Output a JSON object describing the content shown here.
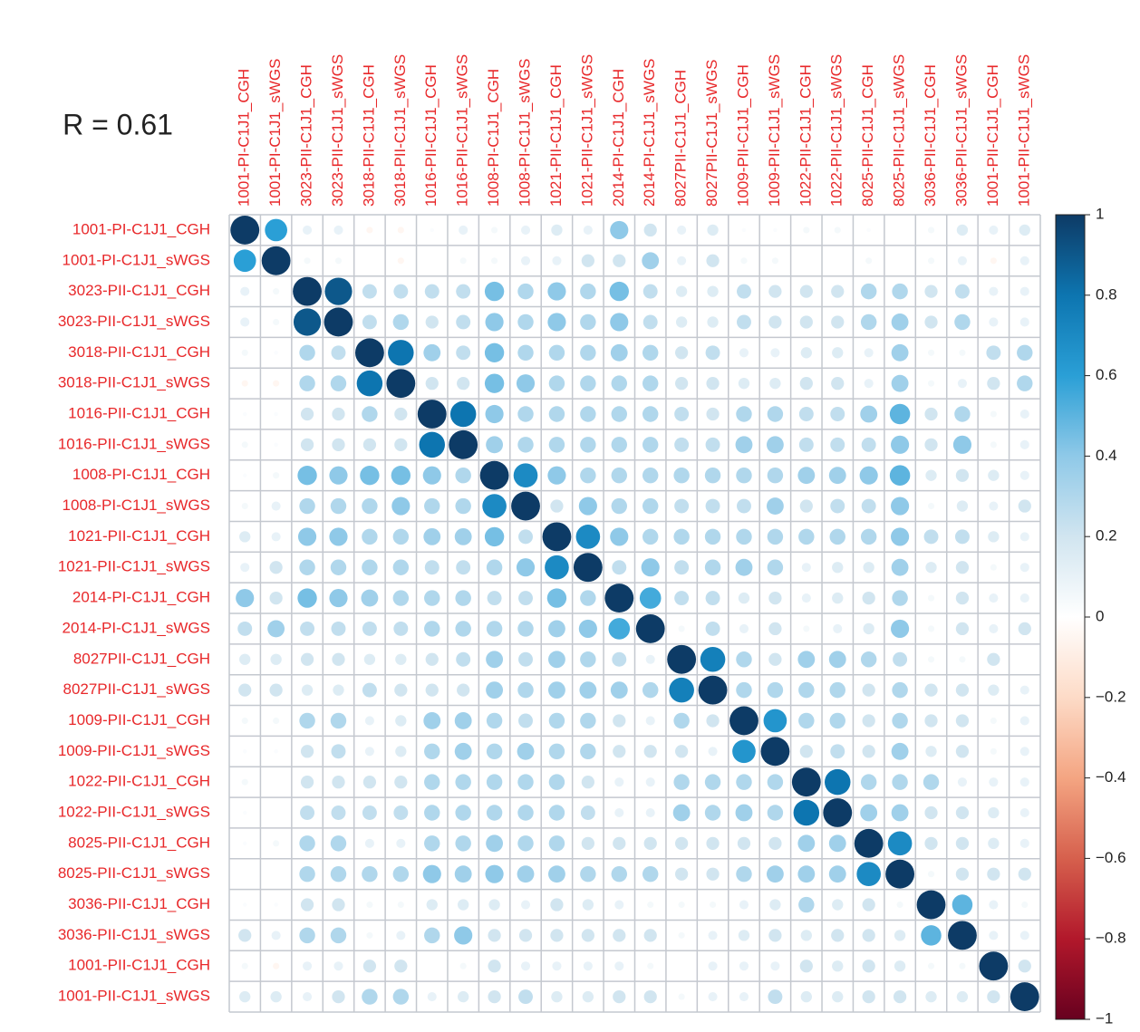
{
  "chart_data": {
    "type": "corrplot",
    "annotation": "R = 0.61",
    "row_labels": [
      "1001-PI-C1J1_CGH",
      "1001-PI-C1J1_sWGS",
      "3023-PII-C1J1_CGH",
      "3023-PII-C1J1_sWGS",
      "3018-PII-C1J1_CGH",
      "3018-PII-C1J1_sWGS",
      "1016-PII-C1J1_CGH",
      "1016-PII-C1J1_sWGS",
      "1008-PI-C1J1_CGH",
      "1008-PI-C1J1_sWGS",
      "1021-PII-C1J1_CGH",
      "1021-PII-C1J1_sWGS",
      "2014-PI-C1J1_CGH",
      "2014-PI-C1J1_sWGS",
      "8027PII-C1J1_CGH",
      "8027PII-C1J1_sWGS",
      "1009-PII-C1J1_CGH",
      "1009-PII-C1J1_sWGS",
      "1022-PII-C1J1_CGH",
      "1022-PII-C1J1_sWGS",
      "8025-PII-C1J1_CGH",
      "8025-PII-C1J1_sWGS",
      "3036-PII-C1J1_CGH",
      "3036-PII-C1J1_sWGS",
      "1001-PII-C1J1_CGH",
      "1001-PII-C1J1_sWGS"
    ],
    "col_labels": [
      "1001-PI-C1J1_CGH",
      "1001-PI-C1J1_sWGS",
      "3023-PII-C1J1_CGH",
      "3023-PII-C1J1_sWGS",
      "3018-PII-C1J1_CGH",
      "3018-PII-C1J1_sWGS",
      "1016-PII-C1J1_CGH",
      "1016-PII-C1J1_sWGS",
      "1008-PI-C1J1_CGH",
      "1008-PI-C1J1_sWGS",
      "1021-PII-C1J1_CGH",
      "1021-PII-C1J1_sWGS",
      "2014-PI-C1J1_CGH",
      "2014-PI-C1J1_sWGS",
      "8027PII-C1J1_CGH",
      "8027PII-C1J1_sWGS",
      "1009-PII-C1J1_CGH",
      "1009-PII-C1J1_sWGS",
      "1022-PII-C1J1_CGH",
      "1022-PII-C1J1_sWGS",
      "8025-PII-C1J1_CGH",
      "8025-PII-C1J1_sWGS",
      "3036-PII-C1J1_CGH",
      "3036-PII-C1J1_sWGS",
      "1001-PII-C1J1_CGH",
      "1001-PII-C1J1_sWGS"
    ],
    "values": [
      [
        1,
        0.6,
        0.1,
        0.1,
        -0.05,
        -0.05,
        0.02,
        0.1,
        0.05,
        0.1,
        0.15,
        0.1,
        0.4,
        0.2,
        0.1,
        0.15,
        0.02,
        0.02,
        0.05,
        0.05,
        0.02,
        0,
        0.05,
        0.15,
        0.1,
        0.15
      ],
      [
        0.6,
        1,
        0.05,
        0.05,
        0,
        -0.05,
        0,
        0.05,
        0.05,
        0.1,
        0.1,
        0.2,
        0.2,
        0.35,
        0.1,
        0.2,
        0.05,
        0.05,
        0,
        0,
        0.05,
        0,
        0.05,
        0.1,
        -0.05,
        0.1
      ],
      [
        0.1,
        0.05,
        1,
        0.9,
        0.25,
        0.25,
        0.25,
        0.25,
        0.45,
        0.3,
        0.4,
        0.3,
        0.45,
        0.25,
        0.15,
        0.15,
        0.25,
        0.2,
        0.2,
        0.2,
        0.3,
        0.3,
        0.2,
        0.25,
        0.1,
        0.1
      ],
      [
        0.1,
        0.05,
        0.9,
        1,
        0.25,
        0.3,
        0.2,
        0.25,
        0.4,
        0.3,
        0.4,
        0.3,
        0.4,
        0.25,
        0.15,
        0.15,
        0.25,
        0.2,
        0.2,
        0.2,
        0.3,
        0.35,
        0.2,
        0.3,
        0.1,
        0.1
      ],
      [
        0.05,
        0.02,
        0.3,
        0.25,
        1,
        0.8,
        0.35,
        0.25,
        0.45,
        0.3,
        0.3,
        0.3,
        0.35,
        0.3,
        0.2,
        0.25,
        0.1,
        0.1,
        0.15,
        0.15,
        0.1,
        0.35,
        0.05,
        0.05,
        0.25,
        0.3
      ],
      [
        -0.05,
        -0.05,
        0.3,
        0.3,
        0.8,
        1,
        0.2,
        0.2,
        0.45,
        0.4,
        0.3,
        0.3,
        0.3,
        0.3,
        0.2,
        0.2,
        0.15,
        0.15,
        0.2,
        0.2,
        0.1,
        0.35,
        0.05,
        0.1,
        0.2,
        0.3
      ],
      [
        0.02,
        0.02,
        0.2,
        0.2,
        0.3,
        0.2,
        1,
        0.8,
        0.4,
        0.3,
        0.3,
        0.3,
        0.3,
        0.3,
        0.25,
        0.2,
        0.3,
        0.3,
        0.25,
        0.25,
        0.35,
        0.5,
        0.2,
        0.3,
        0.05,
        0.1
      ],
      [
        0.05,
        0.02,
        0.2,
        0.2,
        0.2,
        0.2,
        0.8,
        1,
        0.35,
        0.3,
        0.3,
        0.3,
        0.3,
        0.3,
        0.25,
        0.25,
        0.35,
        0.35,
        0.25,
        0.25,
        0.25,
        0.4,
        0.2,
        0.4,
        0.05,
        0.1
      ],
      [
        0.02,
        0.05,
        0.45,
        0.4,
        0.45,
        0.45,
        0.4,
        0.3,
        1,
        0.7,
        0.4,
        0.3,
        0.3,
        0.3,
        0.3,
        0.3,
        0.3,
        0.3,
        0.35,
        0.35,
        0.4,
        0.5,
        0.15,
        0.2,
        0.15,
        0.1
      ],
      [
        0.05,
        0.1,
        0.3,
        0.3,
        0.3,
        0.4,
        0.3,
        0.3,
        0.7,
        1,
        0.2,
        0.4,
        0.3,
        0.3,
        0.25,
        0.25,
        0.25,
        0.35,
        0.2,
        0.25,
        0.25,
        0.4,
        0.05,
        0.15,
        0.1,
        0.2
      ],
      [
        0.15,
        0.1,
        0.4,
        0.4,
        0.3,
        0.3,
        0.35,
        0.35,
        0.45,
        0.25,
        1,
        0.7,
        0.4,
        0.3,
        0.3,
        0.3,
        0.3,
        0.3,
        0.3,
        0.3,
        0.3,
        0.4,
        0.25,
        0.25,
        0.15,
        0.1
      ],
      [
        0.1,
        0.2,
        0.3,
        0.3,
        0.3,
        0.3,
        0.25,
        0.25,
        0.3,
        0.4,
        0.7,
        1,
        0.25,
        0.4,
        0.25,
        0.3,
        0.35,
        0.3,
        0.1,
        0.15,
        0.15,
        0.35,
        0.15,
        0.2,
        0.05,
        0.1
      ],
      [
        0.4,
        0.2,
        0.45,
        0.4,
        0.35,
        0.3,
        0.3,
        0.3,
        0.25,
        0.25,
        0.45,
        0.3,
        1,
        0.55,
        0.25,
        0.25,
        0.15,
        0.2,
        0.1,
        0.15,
        0.2,
        0.3,
        0.05,
        0.2,
        0.1,
        0.1
      ],
      [
        0.25,
        0.35,
        0.25,
        0.25,
        0.25,
        0.25,
        0.3,
        0.3,
        0.3,
        0.3,
        0.35,
        0.4,
        0.55,
        1,
        0.05,
        0.25,
        0.1,
        0.2,
        0.05,
        0.1,
        0.15,
        0.4,
        0.05,
        0.2,
        0.1,
        0.2
      ],
      [
        0.15,
        0.15,
        0.2,
        0.2,
        0.15,
        0.15,
        0.2,
        0.25,
        0.35,
        0.25,
        0.35,
        0.3,
        0.25,
        0.1,
        1,
        0.75,
        0.3,
        0.2,
        0.35,
        0.35,
        0.3,
        0.25,
        0.05,
        0.05,
        0.2,
        0
      ],
      [
        0.2,
        0.2,
        0.15,
        0.15,
        0.25,
        0.2,
        0.2,
        0.2,
        0.35,
        0.3,
        0.35,
        0.35,
        0.35,
        0.3,
        0.75,
        1,
        0.3,
        0.3,
        0.3,
        0.3,
        0.2,
        0.3,
        0.2,
        0.2,
        0.15,
        0.1
      ],
      [
        0.05,
        0.05,
        0.3,
        0.3,
        0.1,
        0.15,
        0.35,
        0.35,
        0.3,
        0.25,
        0.3,
        0.3,
        0.2,
        0.1,
        0.3,
        0.2,
        1,
        0.65,
        0.3,
        0.3,
        0.2,
        0.3,
        0.2,
        0.2,
        0.05,
        0.1
      ],
      [
        0.02,
        0.02,
        0.2,
        0.25,
        0.1,
        0.15,
        0.3,
        0.35,
        0.3,
        0.35,
        0.3,
        0.3,
        0.2,
        0.2,
        0.2,
        0.1,
        0.65,
        1,
        0.2,
        0.25,
        0.2,
        0.35,
        0.15,
        0.2,
        0.05,
        0.1
      ],
      [
        0.05,
        0,
        0.2,
        0.2,
        0.2,
        0.2,
        0.3,
        0.3,
        0.3,
        0.3,
        0.3,
        0.2,
        0.1,
        0.1,
        0.3,
        0.3,
        0.3,
        0.3,
        1,
        0.8,
        0.3,
        0.3,
        0.3,
        0.1,
        0.1,
        0.1
      ],
      [
        0.02,
        0,
        0.25,
        0.25,
        0.25,
        0.25,
        0.3,
        0.3,
        0.3,
        0.3,
        0.3,
        0.25,
        0.1,
        0.1,
        0.35,
        0.3,
        0.35,
        0.3,
        0.8,
        1,
        0.35,
        0.35,
        0.2,
        0.2,
        0.15,
        0.1
      ],
      [
        0.02,
        0.05,
        0.3,
        0.3,
        0.1,
        0.1,
        0.3,
        0.3,
        0.35,
        0.3,
        0.3,
        0.2,
        0.2,
        0.2,
        0.2,
        0.2,
        0.2,
        0.2,
        0.35,
        0.35,
        1,
        0.7,
        0.2,
        0.2,
        0.15,
        0.1
      ],
      [
        0,
        0,
        0.3,
        0.3,
        0.3,
        0.3,
        0.4,
        0.35,
        0.4,
        0.35,
        0.35,
        0.3,
        0.3,
        0.3,
        0.2,
        0.2,
        0.3,
        0.35,
        0.35,
        0.35,
        0.7,
        1,
        0.05,
        0.2,
        0.2,
        0.2
      ],
      [
        0.02,
        0.02,
        0.2,
        0.2,
        0.05,
        0.05,
        0.15,
        0.15,
        0.15,
        0.1,
        0.2,
        0.15,
        0.1,
        0.05,
        0.05,
        0.05,
        0.1,
        0.15,
        0.3,
        0.15,
        0.2,
        0.05,
        1,
        0.5,
        0.1,
        0.05
      ],
      [
        0.2,
        0.1,
        0.3,
        0.3,
        0.05,
        0.1,
        0.3,
        0.4,
        0.2,
        0.2,
        0.2,
        0.2,
        0.2,
        0.2,
        0.05,
        0.1,
        0.15,
        0.2,
        0.15,
        0.2,
        0.2,
        0.15,
        0.5,
        1,
        0.1,
        0.1
      ],
      [
        0.05,
        -0.05,
        0.1,
        0.1,
        0.2,
        0.2,
        0,
        0.05,
        0.2,
        0.1,
        0.1,
        0.1,
        0.1,
        0.05,
        0,
        0.1,
        0.1,
        0.1,
        0.2,
        0.15,
        0.2,
        0.15,
        0.05,
        0.05,
        1,
        0.2
      ],
      [
        0.15,
        0.15,
        0.1,
        0.2,
        0.3,
        0.3,
        0.1,
        0.15,
        0.2,
        0.25,
        0.15,
        0.15,
        0.2,
        0.2,
        0.05,
        0.1,
        0.1,
        0.25,
        0.15,
        0.15,
        0.2,
        0.2,
        0.15,
        0.15,
        0.2,
        1
      ]
    ],
    "ylim": [
      -1,
      1
    ],
    "yticks": [
      {
        "value": -1,
        "label": "−1"
      },
      {
        "value": -0.8,
        "label": "−0.8"
      },
      {
        "value": -0.6,
        "label": "−0.6"
      },
      {
        "value": -0.4,
        "label": "−0.4"
      },
      {
        "value": -0.2,
        "label": "−0.2"
      },
      0,
      0.2,
      0.4,
      0.6,
      0.8,
      1
    ],
    "colors": [
      "#67001f",
      "#b2182b",
      "#d6604d",
      "#f4a582",
      "#fddbc7",
      "#ffffff",
      "#d1e5f0",
      "#8fc9e8",
      "#2a9fd6",
      "#0d75b0",
      "#0d3b66"
    ],
    "label_color": "#e8282a"
  }
}
